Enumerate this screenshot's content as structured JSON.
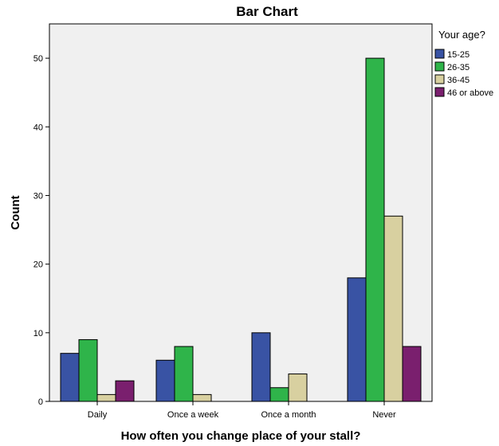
{
  "chart_data": {
    "type": "bar",
    "title": "Bar Chart",
    "xlabel": "How often you change place of your stall?",
    "ylabel": "Count",
    "categories": [
      "Daily",
      "Once a week",
      "Once a month",
      "Never"
    ],
    "ylim": [
      0,
      55
    ],
    "yticks": [
      0,
      10,
      20,
      30,
      40,
      50
    ],
    "grid": false,
    "legend": {
      "title": "Your age?",
      "position": "right"
    },
    "series": [
      {
        "name": "15-25",
        "color": "#3953a4",
        "values": [
          7,
          6,
          10,
          18
        ]
      },
      {
        "name": "26-35",
        "color": "#2fb44a",
        "values": [
          9,
          8,
          2,
          50
        ]
      },
      {
        "name": "36-45",
        "color": "#d8d0a0",
        "values": [
          1,
          1,
          4,
          27
        ]
      },
      {
        "name": "46 or above",
        "color": "#7a1f6e",
        "values": [
          3,
          0,
          0,
          8
        ]
      }
    ],
    "plot_background": "#f0f0f0"
  }
}
